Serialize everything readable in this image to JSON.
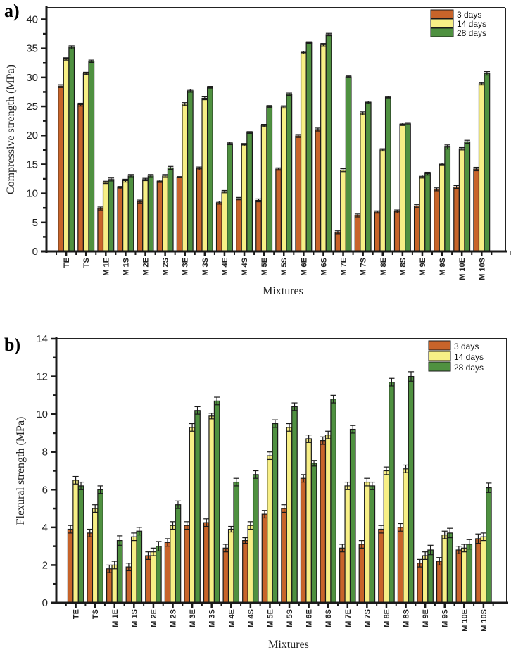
{
  "series_colors": {
    "3 days": "#c8642a",
    "14 days": "#f7ef86",
    "28 days": "#4f9140"
  },
  "chart_data": [
    {
      "type": "bar",
      "panel_label": "a)",
      "title": "",
      "xlabel": "Mixtures",
      "ylabel": "Compressive strength (MPa)",
      "ylim": [
        0,
        42
      ],
      "yticks": [
        0,
        5,
        10,
        15,
        20,
        25,
        30,
        35,
        40
      ],
      "grid": false,
      "legend": {
        "position": "top-right",
        "entries": [
          "3 days",
          "14 days",
          "28 days"
        ]
      },
      "categories": [
        "TE",
        "TS",
        "M 1E",
        "M 1S",
        "M 2E",
        "M 2S",
        "M 3E",
        "M 3S",
        "M 4E",
        "M 4S",
        "M 5E",
        "M 5S",
        "M 6E",
        "M 6S",
        "M 7E",
        "M 7S",
        "M 8E",
        "M 8S",
        "M 9E",
        "M 9S",
        "M 10E",
        "M 10S"
      ],
      "series": [
        {
          "name": "3 days",
          "values": [
            28.5,
            25.3,
            7.4,
            11.0,
            8.6,
            12.1,
            12.8,
            14.3,
            8.4,
            9.1,
            8.8,
            14.2,
            19.9,
            21.0,
            3.3,
            6.2,
            6.8,
            6.9,
            7.8,
            10.7,
            11.1,
            14.2
          ],
          "errors": [
            0.25,
            0.25,
            0.25,
            0.2,
            0.25,
            0.2,
            0.1,
            0.25,
            0.25,
            0.2,
            0.25,
            0.2,
            0.25,
            0.25,
            0.25,
            0.25,
            0.2,
            0.25,
            0.25,
            0.25,
            0.25,
            0.3
          ]
        },
        {
          "name": "14 days",
          "values": [
            33.2,
            30.7,
            11.9,
            12.2,
            12.4,
            13.0,
            25.4,
            26.4,
            10.3,
            18.4,
            21.7,
            24.9,
            34.3,
            35.6,
            14.0,
            23.8,
            17.5,
            21.9,
            12.9,
            15.0,
            17.7,
            28.9
          ],
          "errors": [
            0.2,
            0.2,
            0.2,
            0.25,
            0.2,
            0.25,
            0.25,
            0.25,
            0.2,
            0.2,
            0.2,
            0.2,
            0.2,
            0.25,
            0.25,
            0.25,
            0.2,
            0.2,
            0.25,
            0.2,
            0.2,
            0.2
          ]
        },
        {
          "name": "28 days",
          "values": [
            35.2,
            32.8,
            12.4,
            13.0,
            13.0,
            14.4,
            27.7,
            28.3,
            18.6,
            20.5,
            25.0,
            27.1,
            36.0,
            37.4,
            30.1,
            25.7,
            26.6,
            22.0,
            13.4,
            18.0,
            18.9,
            30.7
          ],
          "errors": [
            0.25,
            0.2,
            0.25,
            0.25,
            0.25,
            0.25,
            0.25,
            0.15,
            0.2,
            0.15,
            0.15,
            0.2,
            0.15,
            0.2,
            0.15,
            0.2,
            0.15,
            0.2,
            0.25,
            0.35,
            0.25,
            0.3
          ]
        }
      ]
    },
    {
      "type": "bar",
      "panel_label": "b)",
      "title": "",
      "xlabel": "Mixtures",
      "ylabel": "Flexural strength (MPa)",
      "ylim": [
        0,
        14
      ],
      "yticks": [
        0,
        2,
        4,
        6,
        8,
        10,
        12,
        14
      ],
      "grid": false,
      "legend": {
        "position": "top-right",
        "entries": [
          "3 days",
          "14 days",
          "28 days"
        ]
      },
      "categories": [
        "TE",
        "TS",
        "M 1E",
        "M 1S",
        "M 2E",
        "M 2S",
        "M 3E",
        "M 3S",
        "M 4E",
        "M 4S",
        "M 5E",
        "M 5S",
        "M 6E",
        "M 6S",
        "M 7E",
        "M 7S",
        "M 8E",
        "M 8S",
        "M 9E",
        "M 9S",
        "M 10E",
        "M 10S"
      ],
      "series": [
        {
          "name": "3 days",
          "values": [
            3.9,
            3.7,
            1.8,
            1.9,
            2.5,
            3.2,
            4.1,
            4.25,
            2.9,
            3.3,
            4.7,
            5.0,
            6.6,
            8.6,
            2.9,
            3.1,
            3.9,
            4.0,
            2.1,
            2.2,
            2.8,
            3.4
          ],
          "errors": [
            0.2,
            0.2,
            0.2,
            0.2,
            0.2,
            0.2,
            0.2,
            0.2,
            0.2,
            0.15,
            0.2,
            0.2,
            0.2,
            0.2,
            0.2,
            0.2,
            0.2,
            0.2,
            0.2,
            0.2,
            0.2,
            0.25
          ]
        },
        {
          "name": "14 days",
          "values": [
            6.5,
            5.0,
            2.0,
            3.5,
            2.7,
            4.1,
            9.3,
            9.9,
            3.9,
            4.1,
            7.8,
            9.3,
            8.7,
            8.9,
            6.2,
            6.4,
            7.0,
            7.1,
            2.5,
            3.6,
            2.9,
            3.5
          ],
          "errors": [
            0.2,
            0.2,
            0.2,
            0.2,
            0.2,
            0.2,
            0.2,
            0.15,
            0.15,
            0.2,
            0.2,
            0.2,
            0.2,
            0.2,
            0.2,
            0.2,
            0.2,
            0.2,
            0.2,
            0.2,
            0.2,
            0.2
          ]
        },
        {
          "name": "28 days",
          "values": [
            6.2,
            6.0,
            3.3,
            3.8,
            3.0,
            5.2,
            10.2,
            10.7,
            6.4,
            6.8,
            9.5,
            10.4,
            7.4,
            10.8,
            9.2,
            6.2,
            11.7,
            12.0,
            2.8,
            3.7,
            3.1,
            6.1
          ],
          "errors": [
            0.2,
            0.2,
            0.25,
            0.2,
            0.25,
            0.2,
            0.2,
            0.2,
            0.2,
            0.2,
            0.2,
            0.2,
            0.15,
            0.2,
            0.2,
            0.2,
            0.2,
            0.25,
            0.25,
            0.25,
            0.25,
            0.25
          ]
        }
      ]
    }
  ]
}
